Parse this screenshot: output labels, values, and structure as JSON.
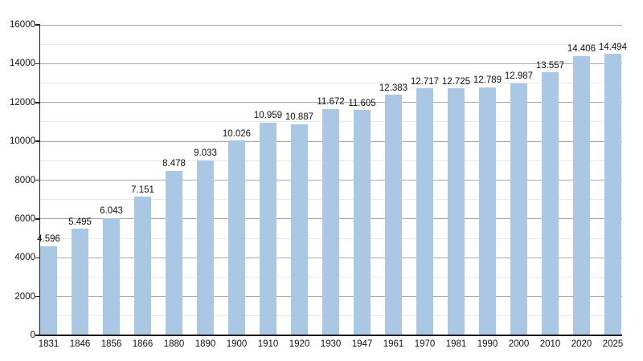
{
  "chart_data": {
    "type": "bar",
    "title": "",
    "xlabel": "",
    "ylabel": "",
    "categories": [
      "1831",
      "1846",
      "1856",
      "1866",
      "1880",
      "1890",
      "1900",
      "1910",
      "1920",
      "1930",
      "1947",
      "1961",
      "1970",
      "1981",
      "1990",
      "2000",
      "2010",
      "2020",
      "2025"
    ],
    "values": [
      4596,
      5495,
      6043,
      7151,
      8478,
      9033,
      10026,
      10959,
      10887,
      11672,
      11605,
      12383,
      12717,
      12725,
      12789,
      12987,
      13557,
      14406,
      14494
    ],
    "value_labels": [
      "4.596",
      "5.495",
      "6.043",
      "7.151",
      "8.478",
      "9.033",
      "10.026",
      "10.959",
      "10.887",
      "11.672",
      "11.605",
      "12.383",
      "12.717",
      "12.725",
      "12.789",
      "12.987",
      "13.557",
      "14.406",
      "14.494"
    ],
    "ylim": [
      0,
      16000
    ],
    "y_major_step": 2000,
    "y_minor_step": 1000,
    "y_major_tick_labels": [
      "0",
      "2000",
      "4000",
      "6000",
      "8000",
      "10000",
      "12000",
      "14000",
      "16000"
    ],
    "grid": "horizontal, major and minor",
    "legend_position": "none",
    "colors": {
      "background": "#ffffff",
      "bar": "#aac8e4",
      "major_grid": "#a8a8a8",
      "minor_grid": "#e8e8e8",
      "axis": "#1a1a1a",
      "text": "#111111"
    }
  }
}
